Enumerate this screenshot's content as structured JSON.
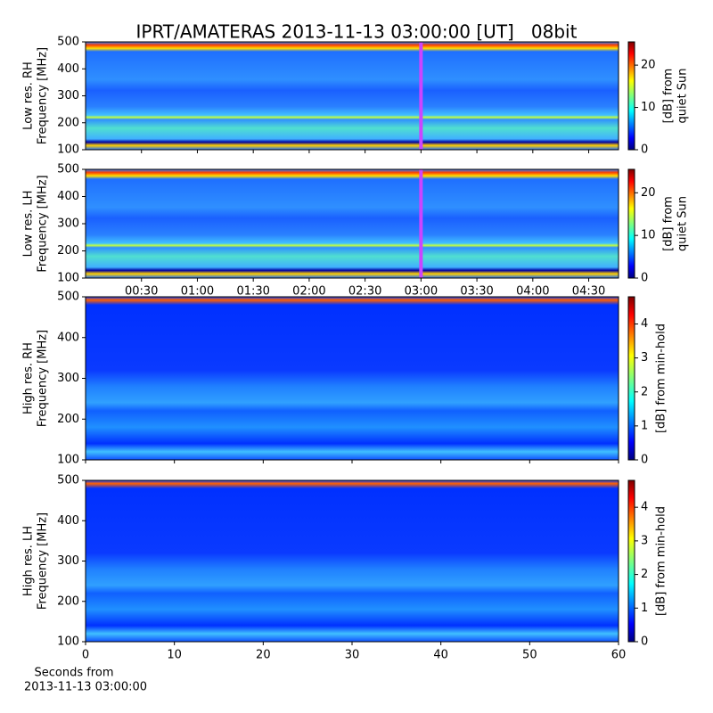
{
  "chart_data": [
    {
      "type": "heatmap",
      "title": "IPRT/AMATERAS 2013-11-13 03:00:00 [UT]   08bit",
      "ylabel": [
        "Low res. RH",
        "Frequency [MHz]"
      ],
      "ylim": [
        100,
        500
      ],
      "yticks": [
        100,
        200,
        300,
        400,
        500
      ],
      "xlim": [
        0,
        286
      ],
      "vline": {
        "value": 180,
        "color": "#cc44ff"
      },
      "colorbar": {
        "label": [
          "[dB] from",
          "quiet Sun"
        ],
        "lim": [
          0,
          25.5
        ],
        "ticks": [
          0,
          10,
          20
        ],
        "colormap": "jet"
      }
    },
    {
      "type": "heatmap",
      "ylabel": [
        "Low res. LH",
        "Frequency [MHz]"
      ],
      "ylim": [
        100,
        500
      ],
      "yticks": [
        100,
        200,
        300,
        400,
        500
      ],
      "xlim": [
        0,
        286
      ],
      "vline": {
        "value": 180,
        "color": "#cc44ff"
      },
      "xticks": [
        {
          "value": 30,
          "label": "00:30"
        },
        {
          "value": 60,
          "label": "01:00"
        },
        {
          "value": 90,
          "label": "01:30"
        },
        {
          "value": 120,
          "label": "02:00"
        },
        {
          "value": 150,
          "label": "02:30"
        },
        {
          "value": 180,
          "label": "03:00"
        },
        {
          "value": 210,
          "label": "03:30"
        },
        {
          "value": 240,
          "label": "04:00"
        },
        {
          "value": 270,
          "label": "04:30"
        }
      ],
      "colorbar": {
        "label": [
          "[dB] from",
          "quiet Sun"
        ],
        "lim": [
          0,
          25.5
        ],
        "ticks": [
          0,
          10,
          20
        ],
        "colormap": "jet"
      }
    },
    {
      "type": "heatmap",
      "ylabel": [
        "High res. RH",
        "Frequency [MHz]"
      ],
      "ylim": [
        100,
        500
      ],
      "yticks": [
        100,
        200,
        300,
        400,
        500
      ],
      "xlim": [
        0,
        60
      ],
      "colorbar": {
        "label": [
          "[dB] from min-hold"
        ],
        "lim": [
          0,
          4.8
        ],
        "ticks": [
          0,
          1,
          2,
          3,
          4
        ],
        "colormap": "jet"
      }
    },
    {
      "type": "heatmap",
      "ylabel": [
        "High res. LH",
        "Frequency [MHz]"
      ],
      "ylim": [
        100,
        500
      ],
      "yticks": [
        100,
        200,
        300,
        400,
        500
      ],
      "xlim": [
        0,
        60
      ],
      "xticks": [
        0,
        10,
        20,
        30,
        40,
        50,
        60
      ],
      "xlabel": [
        "Seconds from",
        "2013-11-13 03:00:00"
      ],
      "colorbar": {
        "label": [
          "[dB] from min-hold"
        ],
        "lim": [
          0,
          4.8
        ],
        "ticks": [
          0,
          1,
          2,
          3,
          4
        ],
        "colormap": "jet"
      }
    }
  ]
}
